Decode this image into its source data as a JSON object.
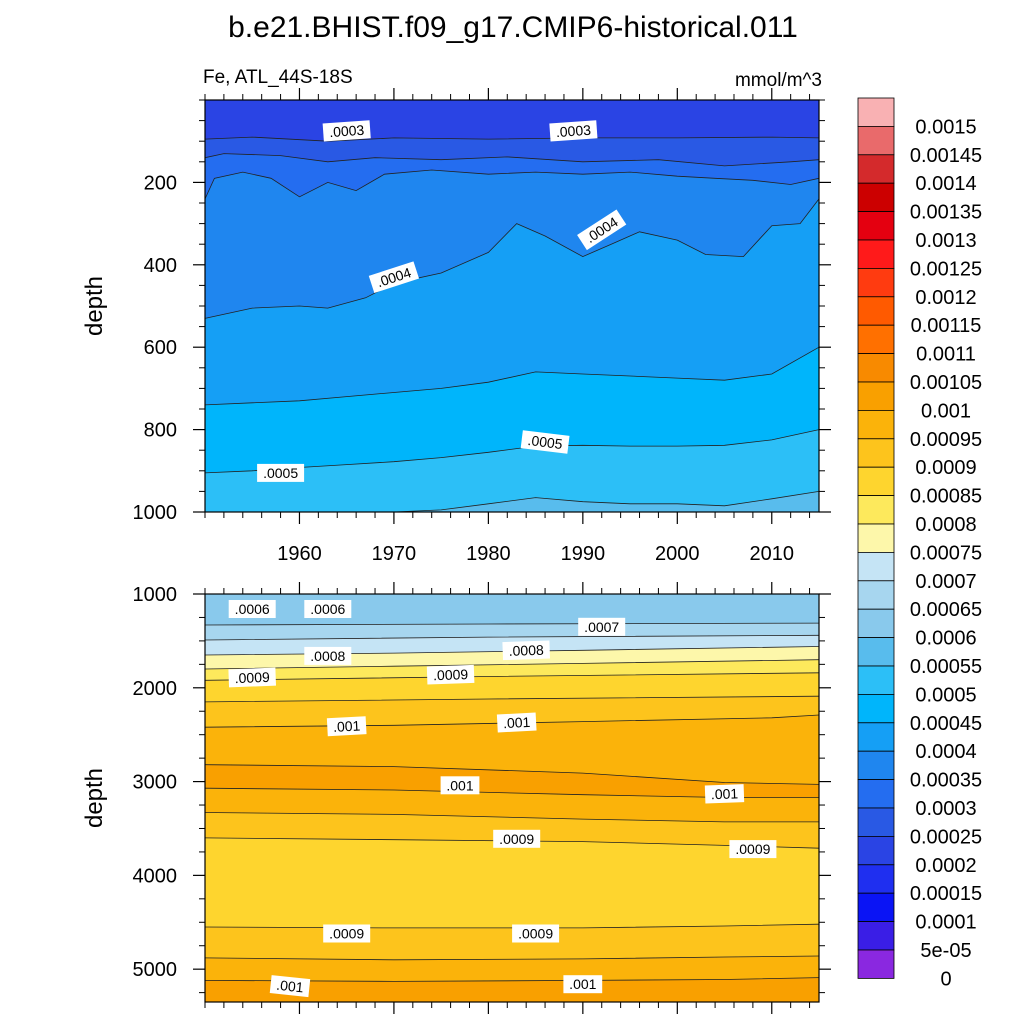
{
  "chart_data": {
    "type": "heatmap",
    "title": "b.e21.BHIST.f09_g17.CMIP6-historical.011",
    "left_subtitle": "Fe, ATL_44S-18S",
    "right_subtitle": "mmol/m^3",
    "ylabel": "depth",
    "xlim": [
      1950,
      2015
    ],
    "colorbar": {
      "labels": [
        "0.0015",
        "0.00145",
        "0.0014",
        "0.00135",
        "0.0013",
        "0.00125",
        "0.0012",
        "0.00115",
        "0.0011",
        "0.00105",
        "0.001",
        "0.00095",
        "0.0009",
        "0.00085",
        "0.0008",
        "0.00075",
        "0.0007",
        "0.00065",
        "0.0006",
        "0.00055",
        "0.0005",
        "0.00045",
        "0.0004",
        "0.00035",
        "0.0003",
        "0.00025",
        "0.0002",
        "0.00015",
        "0.0001",
        "5e-05",
        "0"
      ],
      "colors": [
        "#f9b1b3",
        "#e96a6b",
        "#d42a2c",
        "#cc0000",
        "#e40010",
        "#ff1a1a",
        "#ff3b10",
        "#ff5a00",
        "#ff7000",
        "#f88a00",
        "#f9a000",
        "#fbb30a",
        "#fdc41c",
        "#fed52e",
        "#fde95c",
        "#fdf7aa",
        "#c5e4f5",
        "#a7d6ef",
        "#89c9ec",
        "#58bced",
        "#2cbff7",
        "#00b5fb",
        "#159ff5",
        "#1f86ef",
        "#246df0",
        "#2959e4",
        "#2a44e4",
        "#1f2ff0",
        "#0a14f5",
        "#3a1ee6",
        "#8a28e0"
      ]
    },
    "panels": [
      {
        "name": "upper-0-1000m",
        "xticks": [
          1960,
          1970,
          1980,
          1990,
          2000,
          2010
        ],
        "yticks": [
          200,
          400,
          600,
          800,
          1000
        ],
        "ylim": [
          0,
          1000
        ],
        "bands": [
          {
            "color": "#2a44e4",
            "boundary": [
              [
                1950,
                55
              ],
              [
                1965,
                55
              ],
              [
                1980,
                50
              ],
              [
                1995,
                55
              ],
              [
                2015,
                55
              ]
            ]
          },
          {
            "color": "#2959e4",
            "boundary": [
              [
                1950,
                95
              ],
              [
                1955,
                90
              ],
              [
                1963,
                100
              ],
              [
                1970,
                92
              ],
              [
                1980,
                95
              ],
              [
                1990,
                92
              ],
              [
                2000,
                92
              ],
              [
                2010,
                90
              ],
              [
                2015,
                92
              ]
            ]
          },
          {
            "color": "#246df0",
            "boundary": [
              [
                1950,
                140
              ],
              [
                1952,
                130
              ],
              [
                1958,
                135
              ],
              [
                1963,
                150
              ],
              [
                1968,
                140
              ],
              [
                1975,
                145
              ],
              [
                1982,
                138
              ],
              [
                1990,
                150
              ],
              [
                1998,
                145
              ],
              [
                2005,
                160
              ],
              [
                2012,
                150
              ],
              [
                2015,
                145
              ]
            ]
          },
          {
            "color": "#1f86ef",
            "boundary": [
              [
                1950,
                240
              ],
              [
                1951,
                190
              ],
              [
                1954,
                175
              ],
              [
                1957,
                190
              ],
              [
                1960,
                235
              ],
              [
                1963,
                200
              ],
              [
                1966,
                220
              ],
              [
                1969,
                180
              ],
              [
                1974,
                170
              ],
              [
                1980,
                180
              ],
              [
                1985,
                175
              ],
              [
                1990,
                180
              ],
              [
                1995,
                175
              ],
              [
                2000,
                185
              ],
              [
                2004,
                190
              ],
              [
                2008,
                195
              ],
              [
                2012,
                205
              ],
              [
                2015,
                190
              ]
            ]
          },
          {
            "color": "#159ff5",
            "boundary": [
              [
                1950,
                530
              ],
              [
                1955,
                505
              ],
              [
                1960,
                500
              ],
              [
                1963,
                505
              ],
              [
                1967,
                480
              ],
              [
                1970,
                445
              ],
              [
                1975,
                420
              ],
              [
                1980,
                370
              ],
              [
                1983,
                300
              ],
              [
                1986,
                330
              ],
              [
                1990,
                380
              ],
              [
                1993,
                350
              ],
              [
                1996,
                320
              ],
              [
                2000,
                340
              ],
              [
                2003,
                375
              ],
              [
                2007,
                380
              ],
              [
                2010,
                305
              ],
              [
                2013,
                300
              ],
              [
                2015,
                240
              ]
            ]
          },
          {
            "color": "#00b5fb",
            "boundary": [
              [
                1950,
                740
              ],
              [
                1955,
                735
              ],
              [
                1960,
                730
              ],
              [
                1965,
                720
              ],
              [
                1970,
                710
              ],
              [
                1975,
                700
              ],
              [
                1980,
                685
              ],
              [
                1985,
                660
              ],
              [
                1990,
                665
              ],
              [
                1995,
                670
              ],
              [
                2000,
                675
              ],
              [
                2005,
                680
              ],
              [
                2010,
                665
              ],
              [
                2015,
                600
              ]
            ]
          },
          {
            "color": "#2cbff7",
            "boundary": [
              [
                1950,
                905
              ],
              [
                1955,
                900
              ],
              [
                1960,
                892
              ],
              [
                1965,
                885
              ],
              [
                1970,
                878
              ],
              [
                1975,
                868
              ],
              [
                1980,
                855
              ],
              [
                1985,
                840
              ],
              [
                1990,
                838
              ],
              [
                1995,
                840
              ],
              [
                2000,
                840
              ],
              [
                2005,
                838
              ],
              [
                2010,
                825
              ],
              [
                2015,
                800
              ]
            ]
          },
          {
            "color": "#58bced",
            "boundary": [
              [
                1950,
                1001
              ],
              [
                1962,
                1001
              ],
              [
                1970,
                1001
              ],
              [
                1975,
                995
              ],
              [
                1980,
                980
              ],
              [
                1985,
                965
              ],
              [
                1990,
                975
              ],
              [
                1995,
                980
              ],
              [
                2000,
                980
              ],
              [
                2005,
                985
              ],
              [
                2010,
                968
              ],
              [
                2015,
                950
              ]
            ]
          }
        ],
        "labels": [
          {
            "text": ".0003",
            "x": 1965,
            "y": 75,
            "rot": -4
          },
          {
            "text": ".0003",
            "x": 1989,
            "y": 75,
            "rot": -4
          },
          {
            "text": ".0004",
            "x": 1970,
            "y": 430,
            "rot": -18
          },
          {
            "text": ".0004",
            "x": 1992,
            "y": 315,
            "rot": -33
          },
          {
            "text": ".0005",
            "x": 1958,
            "y": 905,
            "rot": 0
          },
          {
            "text": ".0005",
            "x": 1986,
            "y": 830,
            "rot": 7
          }
        ]
      },
      {
        "name": "lower-1000-5300m",
        "xticks": [
          1960,
          1970,
          1980,
          1990,
          2000,
          2010
        ],
        "yticks": [
          1000,
          2000,
          3000,
          4000,
          5000
        ],
        "ylim": [
          1000,
          5350
        ],
        "bands": [
          {
            "color": "#89c9ec",
            "boundary": [
              [
                1950,
                1160
              ],
              [
                1970,
                1130
              ],
              [
                1990,
                1110
              ],
              [
                2010,
                1110
              ],
              [
                2015,
                1100
              ]
            ]
          },
          {
            "color": "#a7d6ef",
            "boundary": [
              [
                1950,
                1330
              ],
              [
                1980,
                1320
              ],
              [
                2015,
                1310
              ]
            ]
          },
          {
            "color": "#c5e4f5",
            "boundary": [
              [
                1950,
                1490
              ],
              [
                1980,
                1460
              ],
              [
                2015,
                1440
              ]
            ]
          },
          {
            "color": "#fdf7aa",
            "boundary": [
              [
                1950,
                1650
              ],
              [
                1970,
                1630
              ],
              [
                1990,
                1600
              ],
              [
                2015,
                1560
              ]
            ]
          },
          {
            "color": "#fde95c",
            "boundary": [
              [
                1950,
                1800
              ],
              [
                1970,
                1770
              ],
              [
                1990,
                1740
              ],
              [
                2015,
                1700
              ]
            ]
          },
          {
            "color": "#fed52e",
            "boundary": [
              [
                1950,
                1920
              ],
              [
                1980,
                1880
              ],
              [
                2015,
                1840
              ]
            ]
          },
          {
            "color": "#fdc41c",
            "boundary": [
              [
                1950,
                2150
              ],
              [
                1980,
                2120
              ],
              [
                2015,
                2090
              ]
            ]
          },
          {
            "color": "#fbb30a",
            "boundary": [
              [
                1950,
                2420
              ],
              [
                1970,
                2400
              ],
              [
                1990,
                2360
              ],
              [
                2010,
                2320
              ],
              [
                2015,
                2290
              ]
            ]
          },
          {
            "color": "#f9a000",
            "boundary": [
              [
                1950,
                2820
              ],
              [
                1970,
                2840
              ],
              [
                1990,
                2910
              ],
              [
                2005,
                3010
              ],
              [
                2015,
                3030
              ]
            ]
          },
          {
            "color": "#fbb30a",
            "boundary": [
              [
                1950,
                3070
              ],
              [
                1970,
                3090
              ],
              [
                1990,
                3140
              ],
              [
                2005,
                3170
              ],
              [
                2015,
                3170
              ]
            ]
          },
          {
            "color": "#fdc41c",
            "boundary": [
              [
                1950,
                3330
              ],
              [
                1970,
                3350
              ],
              [
                1990,
                3400
              ],
              [
                2005,
                3430
              ],
              [
                2015,
                3430
              ]
            ]
          },
          {
            "color": "#fed52e",
            "boundary": [
              [
                1950,
                3600
              ],
              [
                1970,
                3620
              ],
              [
                1990,
                3640
              ],
              [
                2005,
                3680
              ],
              [
                2015,
                3710
              ]
            ]
          },
          {
            "color": "#fdc41c",
            "boundary": [
              [
                1950,
                4550
              ],
              [
                1970,
                4560
              ],
              [
                1990,
                4560
              ],
              [
                2005,
                4540
              ],
              [
                2015,
                4520
              ]
            ]
          },
          {
            "color": "#fbb30a",
            "boundary": [
              [
                1950,
                4880
              ],
              [
                1970,
                4900
              ],
              [
                1990,
                4890
              ],
              [
                2005,
                4870
              ],
              [
                2015,
                4860
              ]
            ]
          },
          {
            "color": "#f9a000",
            "boundary": [
              [
                1950,
                5120
              ],
              [
                1970,
                5130
              ],
              [
                1990,
                5120
              ],
              [
                2005,
                5110
              ],
              [
                2015,
                5090
              ]
            ]
          }
        ],
        "labels": [
          {
            "text": ".0006",
            "x": 1955,
            "y": 1160,
            "rot": 0
          },
          {
            "text": ".0006",
            "x": 1963,
            "y": 1160,
            "rot": 0
          },
          {
            "text": ".0007",
            "x": 1992,
            "y": 1350,
            "rot": 0
          },
          {
            "text": ".0008",
            "x": 1963,
            "y": 1660,
            "rot": 0
          },
          {
            "text": ".0008",
            "x": 1984,
            "y": 1600,
            "rot": -2
          },
          {
            "text": ".0009",
            "x": 1955,
            "y": 1890,
            "rot": -2
          },
          {
            "text": ".0009",
            "x": 1976,
            "y": 1860,
            "rot": -2
          },
          {
            "text": ".001",
            "x": 1965,
            "y": 2410,
            "rot": -3
          },
          {
            "text": ".001",
            "x": 1983,
            "y": 2370,
            "rot": -3
          },
          {
            "text": ".001",
            "x": 1977,
            "y": 3040,
            "rot": 0
          },
          {
            "text": ".001",
            "x": 2005,
            "y": 3130,
            "rot": -2
          },
          {
            "text": ".0009",
            "x": 1983,
            "y": 3610,
            "rot": 0
          },
          {
            "text": ".0009",
            "x": 2008,
            "y": 3720,
            "rot": 0
          },
          {
            "text": ".0009",
            "x": 1965,
            "y": 4620,
            "rot": 0
          },
          {
            "text": ".0009",
            "x": 1985,
            "y": 4620,
            "rot": 0
          },
          {
            "text": ".001",
            "x": 1959,
            "y": 5180,
            "rot": 6
          },
          {
            "text": ".001",
            "x": 1990,
            "y": 5160,
            "rot": 0
          }
        ]
      }
    ]
  }
}
